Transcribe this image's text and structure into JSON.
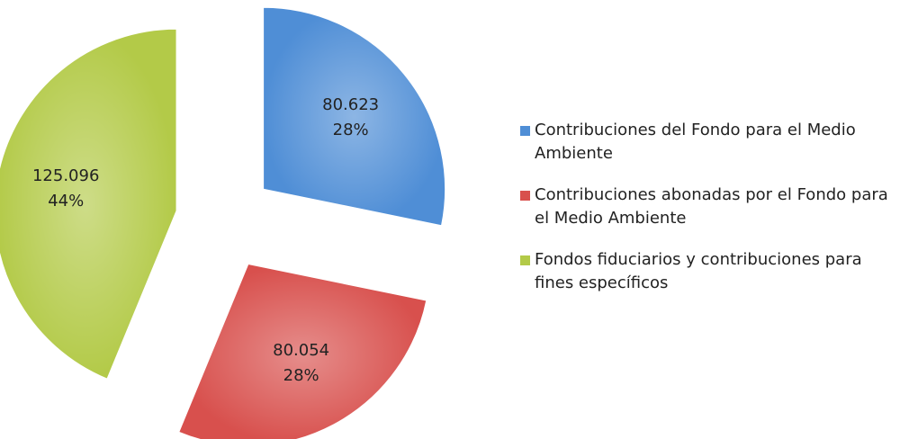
{
  "chart_data": {
    "type": "pie",
    "categories": [
      "Contribuciones del Fondo para el Medio Ambiente",
      "Contribuciones abonadas por el Fondo para el Medio Ambiente",
      "Fondos fiduciarios y contribuciones para fines específicos"
    ],
    "values": [
      80.623,
      80.054,
      125.096
    ],
    "percent_labels": [
      "28%",
      "28%",
      "44%"
    ],
    "colors": [
      "#4f8ed6",
      "#d8504d",
      "#b3ca48"
    ],
    "exploded": true,
    "legend": "right"
  }
}
